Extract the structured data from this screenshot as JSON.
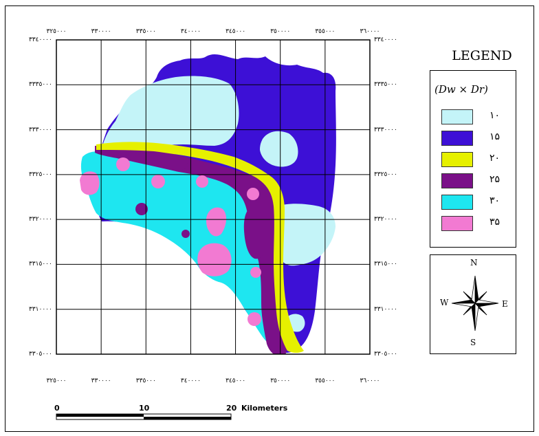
{
  "map": {
    "x_ticks": [
      "٣٢٥٠٠٠",
      "٣٣٠٠٠٠",
      "٣٣٥٠٠٠",
      "٣٤٠٠٠٠",
      "٣٤٥٠٠٠",
      "٣٥٠٠٠٠",
      "٣٥٥٠٠٠",
      "٣٦٠٠٠٠"
    ],
    "y_ticks": [
      "٣٣٤٠٠٠٠",
      "٣٣٣٥٠٠٠",
      "٣٣٣٠٠٠٠",
      "٣٣٢٥٠٠٠",
      "٣٣٢٠٠٠٠",
      "٣٣١٥٠٠٠",
      "٣٣١٠٠٠٠",
      "٣٣٠٥٠٠٠"
    ],
    "colors": {
      "c10": "#c4f4f8",
      "c15": "#3d10d6",
      "c20": "#e6f000",
      "c25": "#7a1088",
      "c30": "#1ee6f0",
      "c35": "#f27ad2",
      "grid": "#000000"
    }
  },
  "legend": {
    "title": "LEGEND",
    "variable": "(Dw × Dr)",
    "items": [
      {
        "label": "١٠",
        "color": "#c4f4f8"
      },
      {
        "label": "١۵",
        "color": "#3d10d6"
      },
      {
        "label": "٢٠",
        "color": "#e6f000"
      },
      {
        "label": "٢۵",
        "color": "#7a1088"
      },
      {
        "label": "٣٠",
        "color": "#1ee6f0"
      },
      {
        "label": "٣۵",
        "color": "#f27ad2"
      }
    ]
  },
  "north_arrow": {
    "n": "N",
    "s": "S",
    "e": "E",
    "w": "W",
    "icon": "compass-rose-icon"
  },
  "scale_bar": {
    "labels": [
      "0",
      "10",
      "20"
    ],
    "unit": "Kilometers"
  }
}
